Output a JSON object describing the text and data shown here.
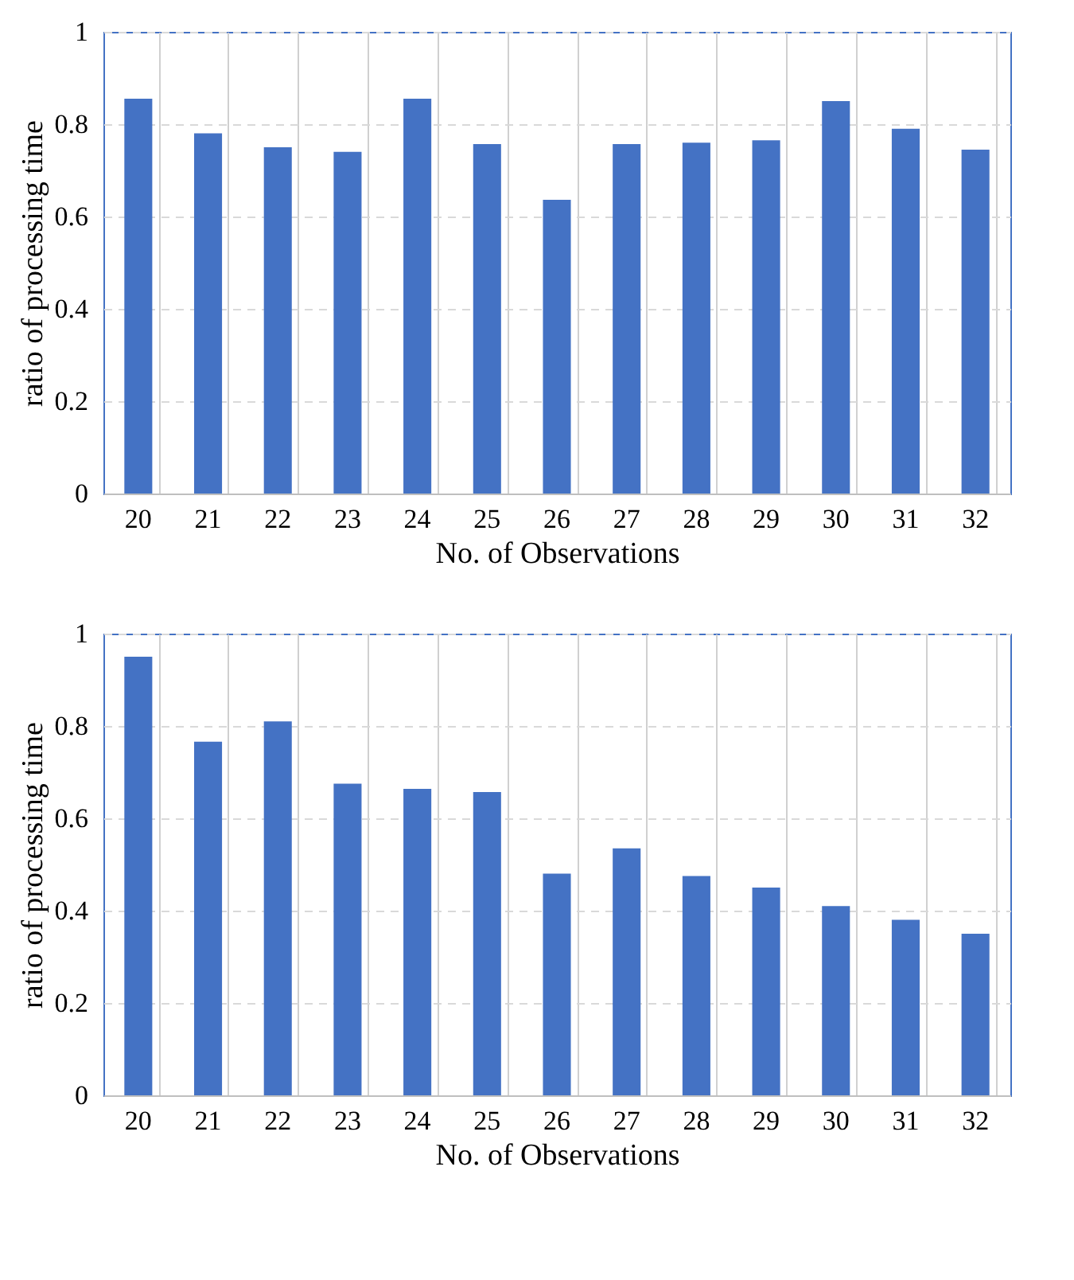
{
  "chart_data": [
    {
      "type": "bar",
      "xlabel": "No. of Observations",
      "ylabel": "ratio of  processing time",
      "categories": [
        "20",
        "21",
        "22",
        "23",
        "24",
        "25",
        "26",
        "27",
        "28",
        "29",
        "30",
        "31",
        "32"
      ],
      "values": [
        0.855,
        0.78,
        0.75,
        0.74,
        0.855,
        0.757,
        0.636,
        0.757,
        0.76,
        0.765,
        0.85,
        0.79,
        0.745
      ],
      "color": "#4472c4",
      "ylim": [
        0,
        1
      ],
      "yticks": [
        0,
        0.2,
        0.4,
        0.6,
        0.8,
        1
      ],
      "grid": true
    },
    {
      "type": "bar",
      "xlabel": "No. of Observations",
      "ylabel": "ratio of processing time",
      "categories": [
        "20",
        "21",
        "22",
        "23",
        "24",
        "25",
        "26",
        "27",
        "28",
        "29",
        "30",
        "31",
        "32"
      ],
      "values": [
        0.95,
        0.766,
        0.81,
        0.675,
        0.664,
        0.657,
        0.48,
        0.535,
        0.475,
        0.45,
        0.41,
        0.38,
        0.35
      ],
      "color": "#4472c4",
      "ylim": [
        0,
        1
      ],
      "yticks": [
        0,
        0.2,
        0.4,
        0.6,
        0.8,
        1
      ],
      "grid": true
    }
  ]
}
